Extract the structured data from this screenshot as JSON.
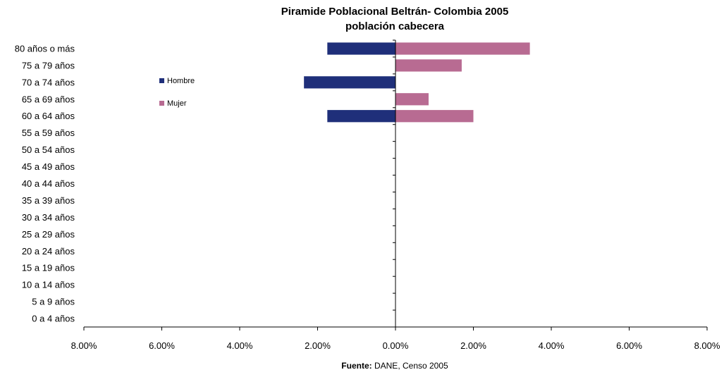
{
  "chart_data": {
    "type": "bar",
    "orientation": "horizontal",
    "title": "Piramide Poblacional Beltrán- Colombia 2005",
    "subtitle": "población cabecera",
    "categories": [
      "80 años o más",
      "75 a 79 años",
      "70 a 74 años",
      "65 a 69 años",
      "60 a 64 años",
      "55 a 59 años",
      "50 a 54 años",
      "45 a 49 años",
      "40 a 44 años",
      "35 a 39 años",
      "30 a 34 años",
      "25 a 29 años",
      "20 a 24 años",
      "15 a 19 años",
      "10 a 14 años",
      "5 a 9 años",
      "0 a 4 años"
    ],
    "series": [
      {
        "name": "Hombre",
        "color": "#1f2f7a",
        "values": [
          -1.75,
          0,
          -2.35,
          0,
          -1.75,
          0,
          0,
          0,
          0,
          0,
          0,
          0,
          0,
          0,
          0,
          0,
          0
        ]
      },
      {
        "name": "Mujer",
        "color": "#b86b92",
        "values": [
          3.45,
          1.7,
          0,
          0.85,
          2.0,
          0,
          0,
          0,
          0,
          0,
          0,
          0,
          0,
          0,
          0,
          0,
          0
        ]
      }
    ],
    "xlim": [
      -8,
      8
    ],
    "xticks": [
      -8,
      -6,
      -4,
      -2,
      0,
      2,
      4,
      6,
      8
    ],
    "xtick_labels": [
      "8.00%",
      "6.00%",
      "4.00%",
      "2.00%",
      "0.00%",
      "2.00%",
      "4.00%",
      "6.00%",
      "8.00%"
    ],
    "legend_position": "upper-left inside plot",
    "grid": false
  },
  "footer": {
    "label": "Fuente:",
    "text": " DANE, Censo 2005"
  }
}
